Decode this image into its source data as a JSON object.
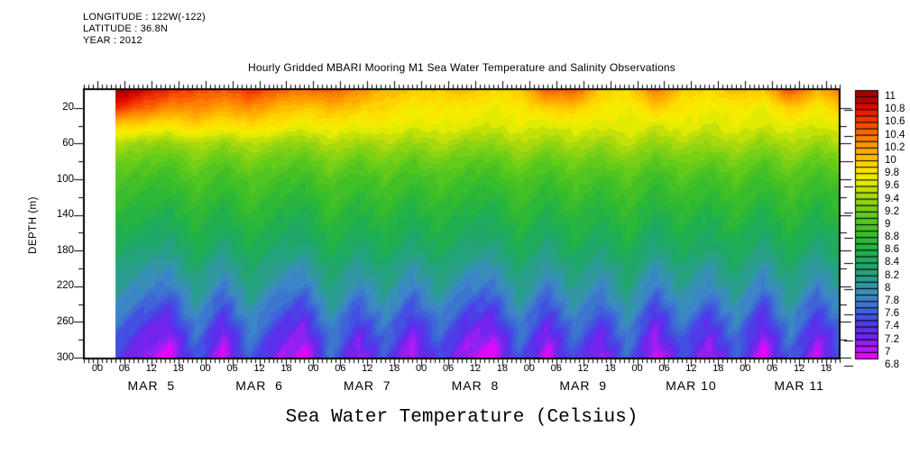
{
  "header": {
    "longitude": "LONGITUDE : 122W(-122)",
    "latitude": "LATITUDE : 36.8N",
    "year": "YEAR : 2012"
  },
  "title": "Hourly Gridded MBARI Mooring M1 Sea Water Temperature and Salinity Observations",
  "bottom_title": "Sea Water Temperature (Celsius)",
  "y_axis": {
    "label": "DEPTH (m)",
    "major_tick_labels": [
      "20",
      "60",
      "100",
      "140",
      "180",
      "220",
      "260",
      "300"
    ],
    "major_tick_values": [
      20,
      60,
      100,
      140,
      180,
      220,
      260,
      300
    ],
    "minor_tick_values": [
      40,
      80,
      120,
      160,
      200,
      240,
      280
    ],
    "range_m": [
      0,
      300
    ]
  },
  "x_axis": {
    "hour_labels": [
      "00",
      "06",
      "12",
      "18"
    ],
    "day_labels": [
      "MAR  5",
      "MAR  6",
      "MAR  7",
      "MAR  8",
      "MAR  9",
      "MAR 10",
      "MAR 11"
    ]
  },
  "colorbar": {
    "labels": [
      "11",
      "10.8",
      "10.6",
      "10.4",
      "10.2",
      "10",
      "9.8",
      "9.6",
      "9.4",
      "9.2",
      "9",
      "8.8",
      "8.6",
      "8.4",
      "8.2",
      "8",
      "7.8",
      "7.6",
      "7.4",
      "7.2",
      "7",
      "6.8"
    ],
    "min": 6.8,
    "max": 11,
    "box_step": 0.1,
    "label_step": 0.2,
    "tick_step": 0.4,
    "stops": [
      {
        "v": 6.8,
        "c": "#fa00fa"
      },
      {
        "v": 7.0,
        "c": "#a01ef5"
      },
      {
        "v": 7.2,
        "c": "#6428ec"
      },
      {
        "v": 7.4,
        "c": "#4646e6"
      },
      {
        "v": 7.6,
        "c": "#3c6ed2"
      },
      {
        "v": 7.8,
        "c": "#3c8cc3"
      },
      {
        "v": 8.0,
        "c": "#2d9b96"
      },
      {
        "v": 8.2,
        "c": "#23a573"
      },
      {
        "v": 8.4,
        "c": "#1eae55"
      },
      {
        "v": 8.6,
        "c": "#28b43c"
      },
      {
        "v": 8.8,
        "c": "#3cbe28"
      },
      {
        "v": 9.0,
        "c": "#5ac81e"
      },
      {
        "v": 9.2,
        "c": "#82d214"
      },
      {
        "v": 9.4,
        "c": "#b4dc0a"
      },
      {
        "v": 9.6,
        "c": "#f0f000"
      },
      {
        "v": 9.8,
        "c": "#ffdc00"
      },
      {
        "v": 10.0,
        "c": "#ffb400"
      },
      {
        "v": 10.2,
        "c": "#ff8c00"
      },
      {
        "v": 10.4,
        "c": "#fa5a00"
      },
      {
        "v": 10.6,
        "c": "#f02800"
      },
      {
        "v": 10.8,
        "c": "#cd0000"
      },
      {
        "v": 11.0,
        "c": "#960000"
      }
    ]
  },
  "chart_data": {
    "type": "heatmap",
    "title": "Hourly Gridded MBARI Mooring M1 Sea Water Temperature and Salinity Observations",
    "ylabel": "DEPTH (m)",
    "value_label": "Sea Water Temperature (Celsius)",
    "x_days": [
      "MAR 5",
      "MAR 6",
      "MAR 7",
      "MAR 8",
      "MAR 9",
      "MAR 10",
      "MAR 11"
    ],
    "xlim_hours_from_mar5_00": [
      -3,
      165
    ],
    "data_start_hour": 4,
    "ylim_m": [
      0,
      300
    ],
    "value_range_c": [
      6.8,
      11
    ],
    "time_hours": [
      4,
      10,
      16,
      22,
      28,
      34,
      40,
      46,
      52,
      58,
      64,
      70,
      76,
      82,
      88,
      94,
      100,
      106,
      112,
      118,
      124,
      130,
      136,
      142,
      148,
      154,
      160,
      165
    ],
    "depths_m": [
      0,
      20,
      40,
      60,
      80,
      100,
      120,
      140,
      160,
      180,
      200,
      220,
      240,
      260,
      280,
      300
    ],
    "temperature_c": [
      [
        11.0,
        10.8,
        10.6,
        10.5,
        10.4,
        10.6,
        10.4,
        10.3,
        10.4,
        10.2,
        10.0,
        9.9,
        9.9,
        10.0,
        9.8,
        9.9,
        10.4,
        10.4,
        9.9,
        9.8,
        10.3,
        9.9,
        9.8,
        10.0,
        9.9,
        10.5,
        10.0,
        10.3
      ],
      [
        10.6,
        10.4,
        10.2,
        10.2,
        10.1,
        10.2,
        10.0,
        9.9,
        10.0,
        9.9,
        9.8,
        9.7,
        9.7,
        9.7,
        9.6,
        9.7,
        9.9,
        9.9,
        9.7,
        9.6,
        9.9,
        9.7,
        9.6,
        9.7,
        9.6,
        9.9,
        9.7,
        9.9
      ],
      [
        9.9,
        9.8,
        9.7,
        9.85,
        9.7,
        9.8,
        9.7,
        9.6,
        9.7,
        9.6,
        9.65,
        9.55,
        9.6,
        9.55,
        9.5,
        9.6,
        9.5,
        9.6,
        9.55,
        9.6,
        9.5,
        9.6,
        9.5,
        9.6,
        9.5,
        9.6,
        9.5,
        9.6
      ],
      [
        9.38,
        9.3,
        9.25,
        9.41,
        9.26,
        9.42,
        9.31,
        9.25,
        9.43,
        9.29,
        9.4,
        9.27,
        9.39,
        9.28,
        9.25,
        9.41,
        9.26,
        9.4,
        9.29,
        9.43,
        9.25,
        9.39,
        9.28,
        9.41,
        9.25,
        9.42,
        9.27,
        9.38
      ],
      [
        9.14,
        9.04,
        8.98,
        9.17,
        8.99,
        9.18,
        9.05,
        8.98,
        9.2,
        9.03,
        9.16,
        9.0,
        9.15,
        9.02,
        8.98,
        9.17,
        8.99,
        9.16,
        9.03,
        9.2,
        8.98,
        9.15,
        9.02,
        9.17,
        8.98,
        9.18,
        9.0,
        9.14
      ],
      [
        8.94,
        8.84,
        8.77,
        8.98,
        8.78,
        8.99,
        8.85,
        8.77,
        9.0,
        8.82,
        8.97,
        8.8,
        8.95,
        8.81,
        8.77,
        8.98,
        8.78,
        8.97,
        8.82,
        9.0,
        8.77,
        8.95,
        8.81,
        8.98,
        8.77,
        8.99,
        8.8,
        8.94
      ],
      [
        8.8,
        8.68,
        8.6,
        8.84,
        8.62,
        8.86,
        8.69,
        8.6,
        8.87,
        8.66,
        8.83,
        8.63,
        8.81,
        8.65,
        8.6,
        8.84,
        8.62,
        8.83,
        8.66,
        8.87,
        8.6,
        8.81,
        8.65,
        8.84,
        8.6,
        8.86,
        8.63,
        8.8
      ],
      [
        8.65,
        8.51,
        8.42,
        8.71,
        8.44,
        8.73,
        8.53,
        8.42,
        8.74,
        8.49,
        8.69,
        8.46,
        8.67,
        8.47,
        8.42,
        8.71,
        8.44,
        8.69,
        8.49,
        8.74,
        8.42,
        8.67,
        8.47,
        8.71,
        8.42,
        8.73,
        8.46,
        8.65
      ],
      [
        8.51,
        8.35,
        8.25,
        8.57,
        8.27,
        8.59,
        8.37,
        8.25,
        8.61,
        8.33,
        8.55,
        8.29,
        8.53,
        8.31,
        8.25,
        8.57,
        8.27,
        8.55,
        8.33,
        8.61,
        8.25,
        8.53,
        8.31,
        8.57,
        8.25,
        8.59,
        8.29,
        8.51
      ],
      [
        8.37,
        8.19,
        8.08,
        8.43,
        8.1,
        8.45,
        8.21,
        8.08,
        8.48,
        8.17,
        8.41,
        8.12,
        8.39,
        8.15,
        8.08,
        8.43,
        8.1,
        8.41,
        8.17,
        8.48,
        8.08,
        8.39,
        8.15,
        8.43,
        8.08,
        8.45,
        8.12,
        8.37
      ],
      [
        8.18,
        7.98,
        7.85,
        8.25,
        7.88,
        8.28,
        8.0,
        7.85,
        8.3,
        7.95,
        8.23,
        7.9,
        8.2,
        7.93,
        7.85,
        8.25,
        7.88,
        8.23,
        7.95,
        8.3,
        7.85,
        8.2,
        7.93,
        8.25,
        7.85,
        8.28,
        7.9,
        8.18
      ],
      [
        8.04,
        7.8,
        7.65,
        8.13,
        7.68,
        8.16,
        7.83,
        7.65,
        8.19,
        7.77,
        8.1,
        7.71,
        8.07,
        7.74,
        7.65,
        8.13,
        7.68,
        8.1,
        7.77,
        8.19,
        7.65,
        8.07,
        7.74,
        8.13,
        7.65,
        8.16,
        7.71,
        8.04
      ],
      [
        7.86,
        7.58,
        7.4,
        7.96,
        7.44,
        8.0,
        7.61,
        7.4,
        8.03,
        7.54,
        7.93,
        7.47,
        7.89,
        7.51,
        7.4,
        7.96,
        7.44,
        7.93,
        7.54,
        8.03,
        7.4,
        7.89,
        7.51,
        7.96,
        7.4,
        8.0,
        7.47,
        7.86
      ],
      [
        7.66,
        7.36,
        7.17,
        7.78,
        7.21,
        7.82,
        7.4,
        7.17,
        7.85,
        7.32,
        7.74,
        7.25,
        7.7,
        7.28,
        7.17,
        7.78,
        7.21,
        7.74,
        7.32,
        7.85,
        7.17,
        7.7,
        7.28,
        7.78,
        7.17,
        7.82,
        7.25,
        7.66
      ],
      [
        7.5,
        7.18,
        6.98,
        7.62,
        7.02,
        7.66,
        7.22,
        6.98,
        7.7,
        7.14,
        7.58,
        7.06,
        7.54,
        7.1,
        6.98,
        7.62,
        7.02,
        7.58,
        7.14,
        7.7,
        6.98,
        7.54,
        7.1,
        7.62,
        6.98,
        7.66,
        7.06,
        7.5
      ],
      [
        7.39,
        7.03,
        6.8,
        7.52,
        6.85,
        7.57,
        7.07,
        6.8,
        7.61,
        6.98,
        7.48,
        6.89,
        7.43,
        6.94,
        6.8,
        7.52,
        6.85,
        7.48,
        6.98,
        7.61,
        6.8,
        7.43,
        6.94,
        7.52,
        6.8,
        7.57,
        6.89,
        7.39
      ]
    ]
  }
}
